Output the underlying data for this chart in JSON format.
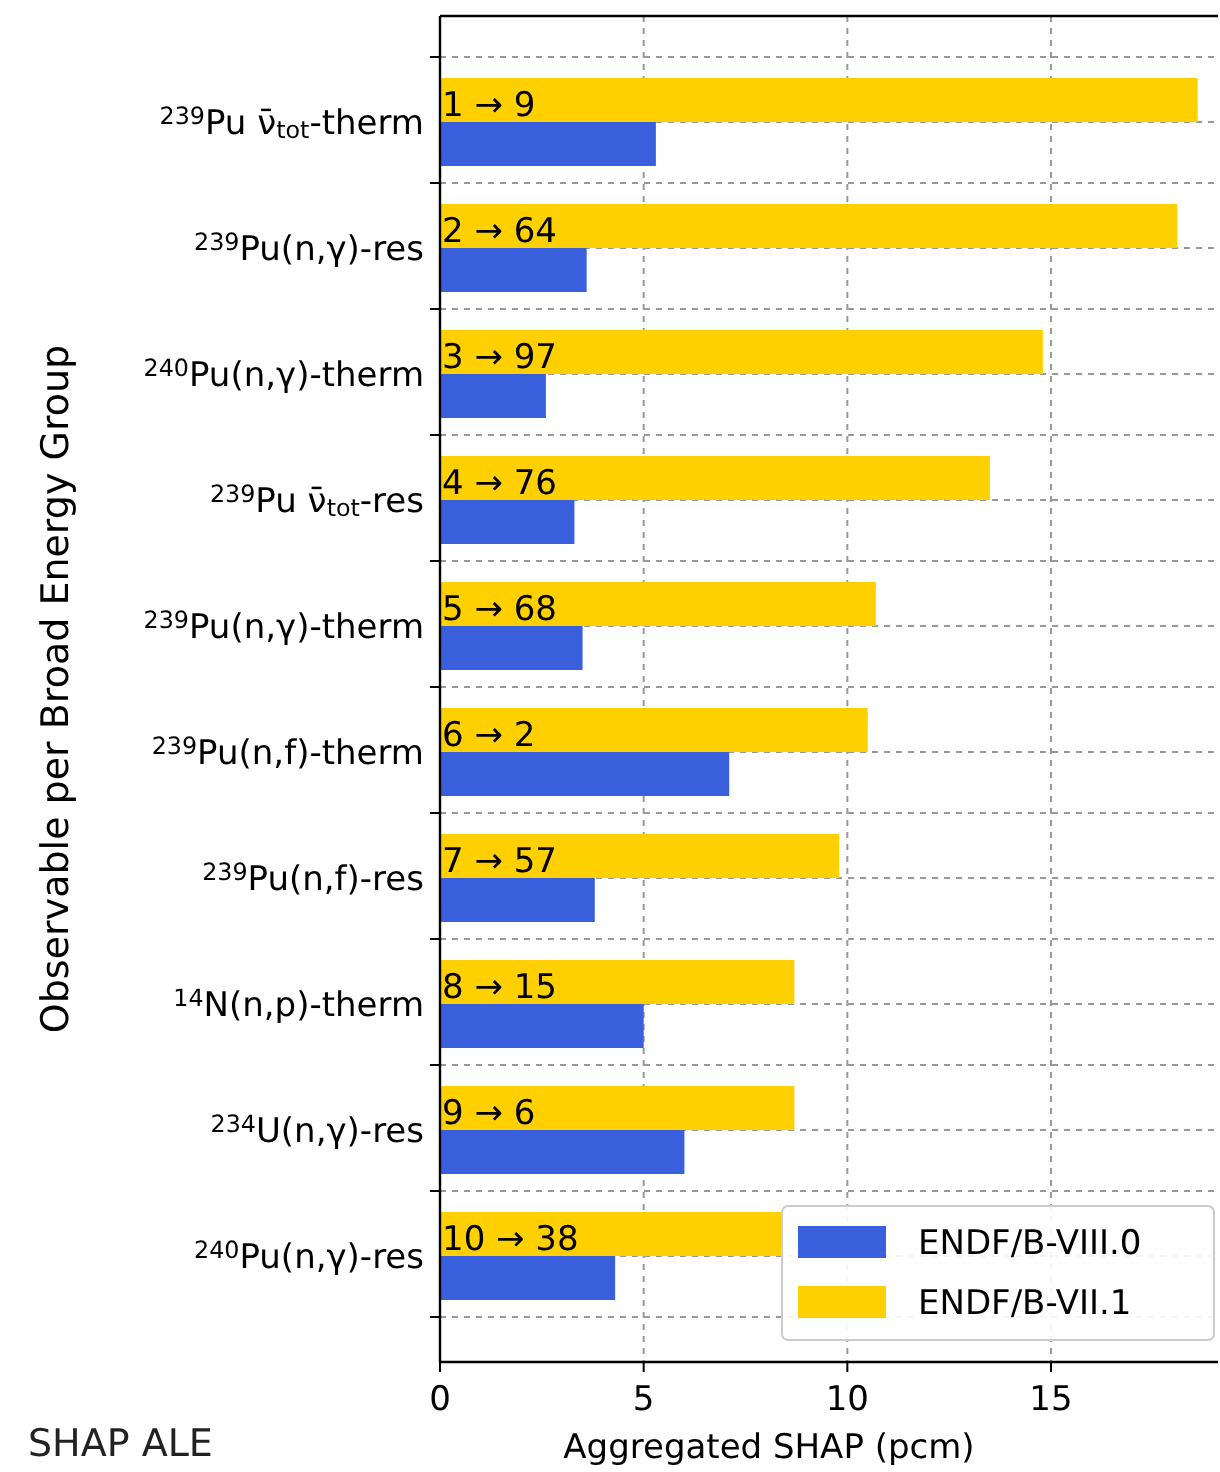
{
  "chart_data": {
    "type": "bar",
    "orientation": "horizontal",
    "xlabel": "Aggregated SHAP (pcm)",
    "ylabel": "Observable per Broad Energy Group",
    "categories": [
      "$^{239}$Pu ν̄$_{tot}$-therm",
      "$^{239}$Pu(n,γ)-res",
      "$^{240}$Pu(n,γ)-therm",
      "$^{239}$Pu ν̄$_{tot}$-res",
      "$^{239}$Pu(n,γ)-therm",
      "$^{239}$Pu(n,f)-therm",
      "$^{239}$Pu(n,f)-res",
      "$^{14}$N(n,p)-therm",
      "$^{234}$U(n,γ)-res",
      "$^{240}$Pu(n,γ)-res"
    ],
    "series": [
      {
        "name": "ENDF/B-VIII.0",
        "color": "#3a5fdc",
        "values": [
          5.3,
          3.6,
          2.6,
          3.3,
          3.5,
          7.1,
          3.8,
          5.0,
          6.0,
          4.3
        ]
      },
      {
        "name": "ENDF/B-VII.1",
        "color": "#ffd000",
        "values": [
          18.6,
          18.1,
          14.8,
          13.5,
          10.7,
          10.5,
          9.8,
          8.7,
          8.7,
          8.4
        ]
      }
    ],
    "xlim": [
      0,
      19.1
    ],
    "xticks": [
      0,
      5,
      10,
      15
    ],
    "grid": true,
    "legend": "bottom right",
    "annotations": [
      {
        "text": "1 → 9",
        "y": "$^{239}$Pu ν̄$_{tot}$-therm"
      },
      {
        "text": "2 → 64",
        "y": "$^{239}$Pu(n,γ)-res"
      },
      {
        "text": "3 → 97",
        "y": "$^{240}$Pu(n,γ)-therm"
      },
      {
        "text": "4 → 76",
        "y": "$^{239}$Pu ν̄$_{tot}$-res"
      },
      {
        "text": "5 → 68",
        "y": "$^{239}$Pu(n,γ)-therm"
      },
      {
        "text": "6 → 2",
        "y": "$^{239}$Pu(n,f)-therm"
      },
      {
        "text": "7 → 57",
        "y": "$^{239}$Pu(n,f)-res"
      },
      {
        "text": "8 → 15",
        "y": "$^{14}$N(n,p)-therm"
      },
      {
        "text": "9 → 6",
        "y": "$^{234}$U(n,γ)-res"
      },
      {
        "text": "10 → 38",
        "y": "$^{240}$Pu(n,γ)-res"
      },
      "SHAP ALE"
    ]
  }
}
